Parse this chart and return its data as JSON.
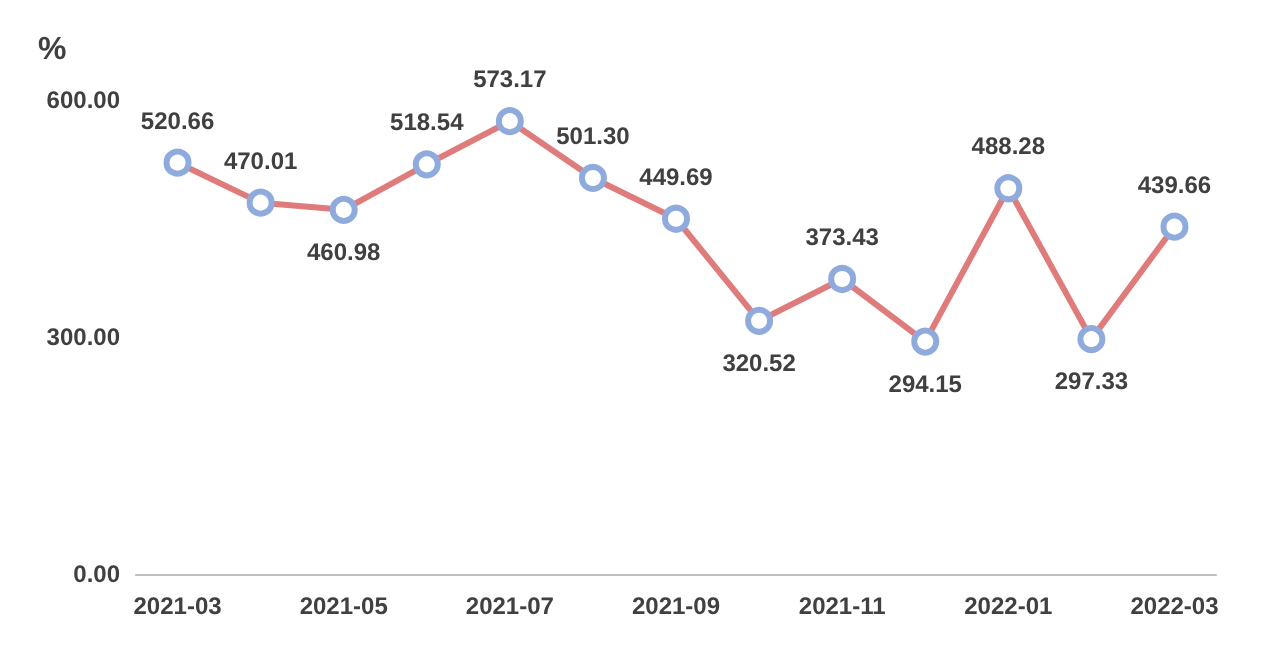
{
  "chart_data": {
    "type": "line",
    "ylabel": "%",
    "categories": [
      "2021-03",
      null,
      "2021-05",
      null,
      "2021-07",
      null,
      "2021-09",
      null,
      "2021-11",
      null,
      "2022-01",
      null,
      "2022-03"
    ],
    "series": [
      {
        "color": "#e07b7b",
        "values": [
          520.66,
          470.01,
          460.98,
          518.54,
          573.17,
          501.3,
          449.69,
          320.52,
          373.43,
          294.15,
          488.28,
          297.33,
          439.66
        ],
        "value_labels": [
          "520.66",
          "470.01",
          "460.98",
          "518.54",
          "573.17",
          "501.30",
          "449.69",
          "320.52",
          "373.43",
          "294.15",
          "488.28",
          "297.33",
          "439.66"
        ]
      }
    ],
    "ylim": [
      0,
      600
    ],
    "yticks": [
      {
        "value": 0,
        "label": "0.00"
      },
      {
        "value": 300,
        "label": "300.00"
      },
      {
        "value": 600,
        "label": "600.00"
      }
    ],
    "grid": false,
    "marker": "circle",
    "line_style": "solid"
  }
}
